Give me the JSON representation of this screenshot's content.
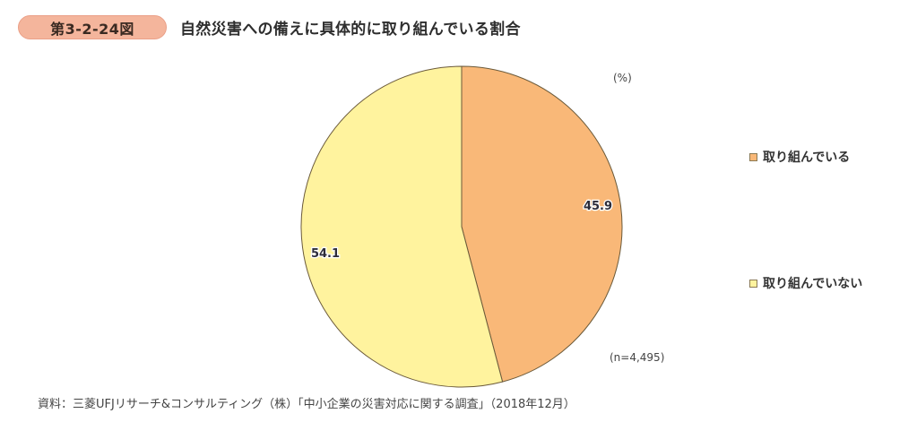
{
  "header": {
    "figure_number": "第3-2-24図",
    "title": "自然災害への備えに具体的に取り組んでいる割合"
  },
  "unit_label": "(%)",
  "sample_size_label": "(n=4,495)",
  "legend": [
    {
      "label": "取り組んでいる",
      "color": "#f9b878"
    },
    {
      "label": "取り組んでいない",
      "color": "#fff39e"
    }
  ],
  "source": "資料：三菱UFJリサーチ&コンサルティング（株）「中小企業の災害対応に関する調査」（2018年12月）",
  "chart_data": {
    "type": "pie",
    "title": "自然災害への備えに具体的に取り組んでいる割合",
    "categories": [
      "取り組んでいる",
      "取り組んでいない"
    ],
    "values": [
      45.9,
      54.1
    ],
    "colors": [
      "#f9b878",
      "#fff39e"
    ],
    "unit": "%",
    "n": 4495,
    "start_angle": "12 o'clock, clockwise",
    "legend_position": "right",
    "data_labels": [
      "45.9",
      "54.1"
    ]
  }
}
